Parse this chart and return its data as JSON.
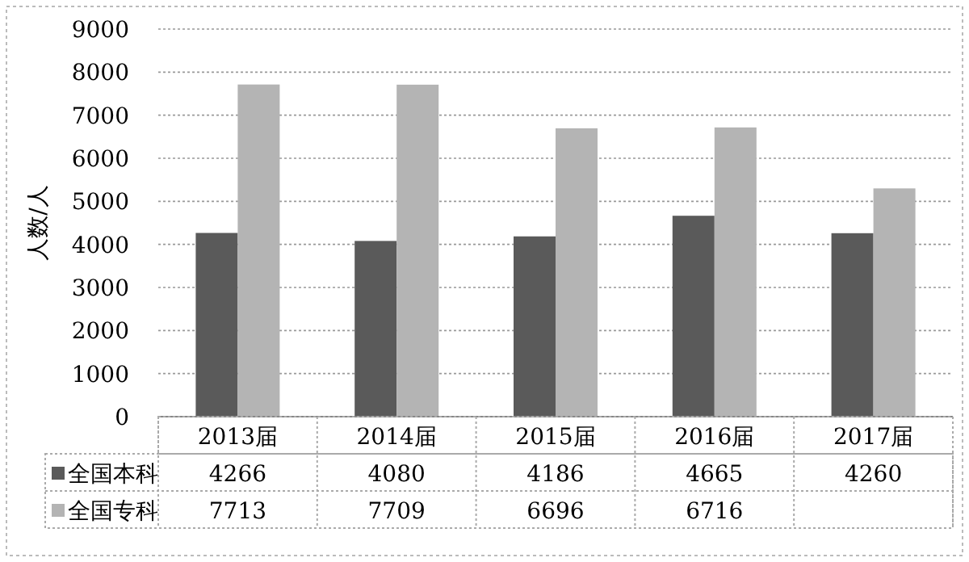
{
  "chart_data": {
    "type": "bar",
    "ylabel": "人数/人",
    "categories": [
      "2013届",
      "2014届",
      "2015届",
      "2016届",
      "2017届"
    ],
    "series": [
      {
        "name": "全国本科",
        "color": "#5a5a5a",
        "values": [
          4266,
          4080,
          4186,
          4665,
          4260
        ],
        "value_labels": [
          "4266",
          "4080",
          "4186",
          "4665",
          "4260"
        ]
      },
      {
        "name": "全国专科",
        "color": "#b4b4b4",
        "values": [
          7713,
          7709,
          6696,
          6716,
          5300
        ],
        "value_labels": [
          "7713",
          "7709",
          "6696",
          "6716",
          null
        ]
      }
    ],
    "ylim": [
      0,
      9000
    ],
    "yticks": [
      0,
      1000,
      2000,
      3000,
      4000,
      5000,
      6000,
      7000,
      8000,
      9000
    ],
    "grid": "y",
    "legend": "bottom"
  }
}
